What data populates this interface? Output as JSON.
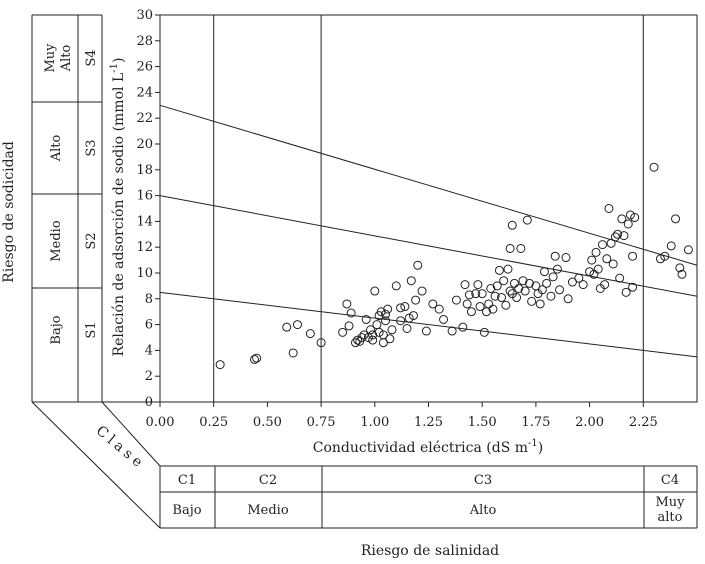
{
  "chart_data": {
    "type": "scatter",
    "title": "",
    "xlabel": "Conductividad eléctrica (dS m",
    "xlabel_sup": "-1",
    "xlabel_close": ")",
    "ylabel": "Relación de adsorción de sodio (mmol L",
    "ylabel_sup": "-1",
    "ylabel_close": ")",
    "xlim": [
      0,
      2.5
    ],
    "ylim": [
      0,
      30
    ],
    "xticks": [
      "0.00",
      "0.25",
      "0.50",
      "0.75",
      "1.00",
      "1.25",
      "1.50",
      "1.75",
      "2.00",
      "2.25"
    ],
    "xtick_values": [
      0,
      0.25,
      0.5,
      0.75,
      1.0,
      1.25,
      1.5,
      1.75,
      2.0,
      2.25
    ],
    "yticks": [
      "0",
      "2",
      "4",
      "6",
      "8",
      "10",
      "12",
      "14",
      "16",
      "18",
      "20",
      "22",
      "24",
      "26",
      "28",
      "30"
    ],
    "ytick_values": [
      0,
      2,
      4,
      6,
      8,
      10,
      12,
      14,
      16,
      18,
      20,
      22,
      24,
      26,
      28,
      30
    ],
    "class_boundaries_x": [
      0.25,
      0.75,
      2.25
    ],
    "sodicity_lines": [
      {
        "x": [
          0,
          2.5
        ],
        "y": [
          8.5,
          3.5
        ]
      },
      {
        "x": [
          0,
          2.5
        ],
        "y": [
          16.0,
          8.2
        ]
      },
      {
        "x": [
          0,
          2.5
        ],
        "y": [
          23.0,
          10.6
        ]
      }
    ],
    "points": [
      [
        0.28,
        2.9
      ],
      [
        0.44,
        3.3
      ],
      [
        0.45,
        3.4
      ],
      [
        0.59,
        5.8
      ],
      [
        0.62,
        3.8
      ],
      [
        0.64,
        6.0
      ],
      [
        0.7,
        5.3
      ],
      [
        0.75,
        4.6
      ],
      [
        0.85,
        5.4
      ],
      [
        0.87,
        7.6
      ],
      [
        0.88,
        5.9
      ],
      [
        0.89,
        6.9
      ],
      [
        0.91,
        4.6
      ],
      [
        0.92,
        4.8
      ],
      [
        0.93,
        4.7
      ],
      [
        0.94,
        5.0
      ],
      [
        0.95,
        5.2
      ],
      [
        0.96,
        6.4
      ],
      [
        0.97,
        5.0
      ],
      [
        0.98,
        5.6
      ],
      [
        0.99,
        5.2
      ],
      [
        0.99,
        4.8
      ],
      [
        1.0,
        8.6
      ],
      [
        1.01,
        6.0
      ],
      [
        1.02,
        6.7
      ],
      [
        1.02,
        5.4
      ],
      [
        1.03,
        7.0
      ],
      [
        1.04,
        5.2
      ],
      [
        1.04,
        4.6
      ],
      [
        1.05,
        6.8
      ],
      [
        1.05,
        6.3
      ],
      [
        1.06,
        7.2
      ],
      [
        1.07,
        4.9
      ],
      [
        1.08,
        5.6
      ],
      [
        1.1,
        9.0
      ],
      [
        1.12,
        7.3
      ],
      [
        1.12,
        6.3
      ],
      [
        1.14,
        7.4
      ],
      [
        1.15,
        5.7
      ],
      [
        1.16,
        6.5
      ],
      [
        1.17,
        9.4
      ],
      [
        1.18,
        6.7
      ],
      [
        1.19,
        7.9
      ],
      [
        1.2,
        10.6
      ],
      [
        1.22,
        8.6
      ],
      [
        1.24,
        5.5
      ],
      [
        1.27,
        7.6
      ],
      [
        1.3,
        7.2
      ],
      [
        1.32,
        6.4
      ],
      [
        1.36,
        5.5
      ],
      [
        1.38,
        7.9
      ],
      [
        1.41,
        5.8
      ],
      [
        1.42,
        9.1
      ],
      [
        1.43,
        7.6
      ],
      [
        1.44,
        8.3
      ],
      [
        1.45,
        7.0
      ],
      [
        1.47,
        8.4
      ],
      [
        1.48,
        9.1
      ],
      [
        1.49,
        7.4
      ],
      [
        1.5,
        8.4
      ],
      [
        1.51,
        5.4
      ],
      [
        1.52,
        7.0
      ],
      [
        1.53,
        7.6
      ],
      [
        1.54,
        8.8
      ],
      [
        1.55,
        7.2
      ],
      [
        1.56,
        8.2
      ],
      [
        1.57,
        9.0
      ],
      [
        1.58,
        10.2
      ],
      [
        1.59,
        8.1
      ],
      [
        1.6,
        9.4
      ],
      [
        1.61,
        7.5
      ],
      [
        1.62,
        10.3
      ],
      [
        1.63,
        8.6
      ],
      [
        1.63,
        11.9
      ],
      [
        1.64,
        8.4
      ],
      [
        1.64,
        13.7
      ],
      [
        1.65,
        9.2
      ],
      [
        1.66,
        8.1
      ],
      [
        1.67,
        8.8
      ],
      [
        1.68,
        11.9
      ],
      [
        1.69,
        9.4
      ],
      [
        1.7,
        8.6
      ],
      [
        1.71,
        14.1
      ],
      [
        1.72,
        9.2
      ],
      [
        1.73,
        7.8
      ],
      [
        1.75,
        9.0
      ],
      [
        1.76,
        8.4
      ],
      [
        1.77,
        7.6
      ],
      [
        1.78,
        8.7
      ],
      [
        1.79,
        10.1
      ],
      [
        1.8,
        9.2
      ],
      [
        1.82,
        8.2
      ],
      [
        1.83,
        9.7
      ],
      [
        1.84,
        11.3
      ],
      [
        1.85,
        10.3
      ],
      [
        1.86,
        8.7
      ],
      [
        1.89,
        11.2
      ],
      [
        1.9,
        8.0
      ],
      [
        1.92,
        9.3
      ],
      [
        1.95,
        9.6
      ],
      [
        1.97,
        9.1
      ],
      [
        2.0,
        10.1
      ],
      [
        2.01,
        11.0
      ],
      [
        2.02,
        9.9
      ],
      [
        2.03,
        11.6
      ],
      [
        2.04,
        10.3
      ],
      [
        2.05,
        8.8
      ],
      [
        2.06,
        12.2
      ],
      [
        2.07,
        9.1
      ],
      [
        2.08,
        11.1
      ],
      [
        2.09,
        15.0
      ],
      [
        2.1,
        12.3
      ],
      [
        2.11,
        10.7
      ],
      [
        2.12,
        12.8
      ],
      [
        2.13,
        13.0
      ],
      [
        2.14,
        9.6
      ],
      [
        2.15,
        14.2
      ],
      [
        2.16,
        12.9
      ],
      [
        2.17,
        8.5
      ],
      [
        2.18,
        13.8
      ],
      [
        2.19,
        14.5
      ],
      [
        2.2,
        8.9
      ],
      [
        2.21,
        14.3
      ],
      [
        2.2,
        11.3
      ],
      [
        2.3,
        18.2
      ],
      [
        2.33,
        11.1
      ],
      [
        2.35,
        11.3
      ],
      [
        2.38,
        12.1
      ],
      [
        2.4,
        14.2
      ],
      [
        2.42,
        10.4
      ],
      [
        2.43,
        9.9
      ],
      [
        2.46,
        11.8
      ]
    ]
  },
  "sodicity_panel": {
    "title": "Riesgo de sodicidad",
    "rows": [
      {
        "name": "Muy Alto",
        "line1": "Muy",
        "line2": "Alto",
        "code": "S4"
      },
      {
        "name": "Alto",
        "code": "S3"
      },
      {
        "name": "Medio",
        "code": "S2"
      },
      {
        "name": "Bajo",
        "code": "S1"
      }
    ]
  },
  "salinity_panel": {
    "label": "Clase",
    "title": "Riesgo de salinidad",
    "classes": [
      {
        "code": "C1",
        "name": "Bajo"
      },
      {
        "code": "C2",
        "name": "Medio"
      },
      {
        "code": "C3",
        "name": "Alto"
      },
      {
        "code": "C4",
        "name": "Muy alto",
        "line1": "Muy",
        "line2": "alto"
      }
    ]
  }
}
